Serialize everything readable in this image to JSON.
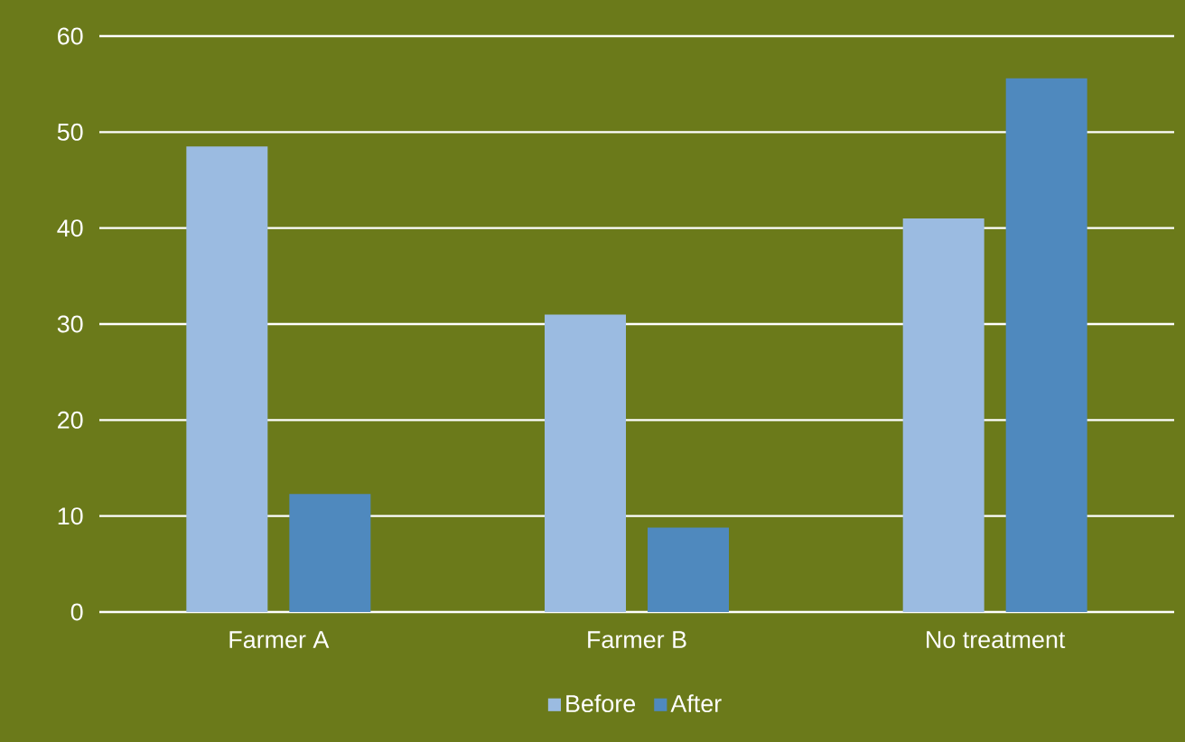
{
  "chart_data": {
    "type": "bar",
    "categories": [
      "Farmer A",
      "Farmer B",
      "No treatment"
    ],
    "series": [
      {
        "name": "Before",
        "color": "#9bbbe1",
        "values": [
          48.5,
          31,
          41
        ]
      },
      {
        "name": "After",
        "color": "#4f89be",
        "values": [
          12.3,
          8.8,
          55.6
        ]
      }
    ],
    "ylim": [
      0,
      60
    ],
    "yticks": [
      0,
      10,
      20,
      30,
      40,
      50,
      60
    ],
    "grid": "y",
    "legend": "bottom"
  }
}
